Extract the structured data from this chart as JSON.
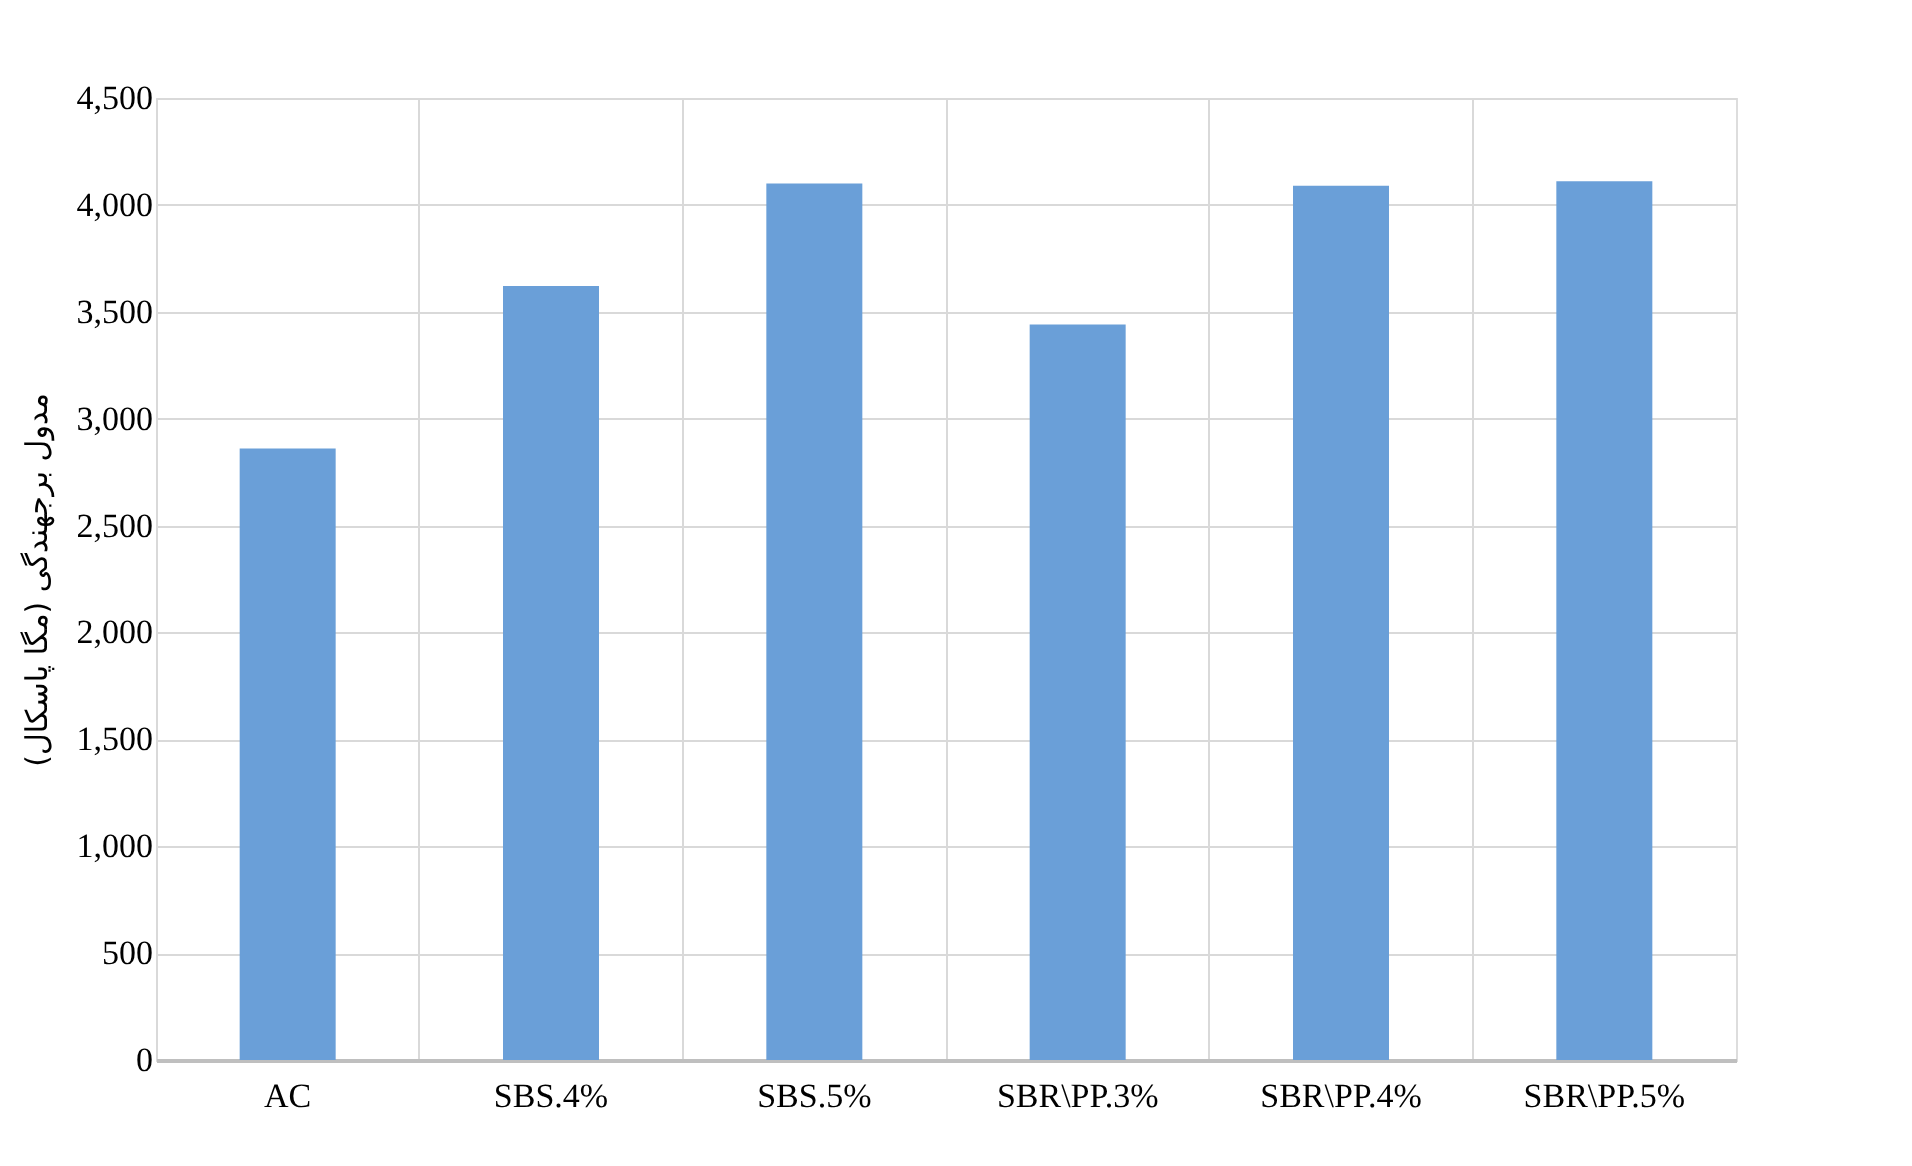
{
  "chart_data": {
    "type": "bar",
    "categories": [
      "AC",
      "SBS.4%",
      "SBS.5%",
      "SBR\\PP.3%",
      "SBR\\PP.4%",
      "SBR\\PP.5%"
    ],
    "values": [
      2860,
      3620,
      4100,
      3440,
      4090,
      4110
    ],
    "color": "#6a9fd8",
    "ylabel": "مدول برجهندگی (مگا پاسکال)",
    "ylim": [
      0,
      4500
    ],
    "yticks": [
      0,
      500,
      {
        "value": 1000,
        "label": "1,000"
      },
      {
        "value": 1500,
        "label": "1,500"
      },
      {
        "value": 2000,
        "label": "2,000"
      },
      {
        "value": 2500,
        "label": "2,500"
      },
      {
        "value": 3000,
        "label": "3,000"
      },
      {
        "value": 3500,
        "label": "3,500"
      },
      {
        "value": 4000,
        "label": "4,000"
      },
      {
        "value": 4500,
        "label": "4,500"
      }
    ],
    "grid": true
  }
}
